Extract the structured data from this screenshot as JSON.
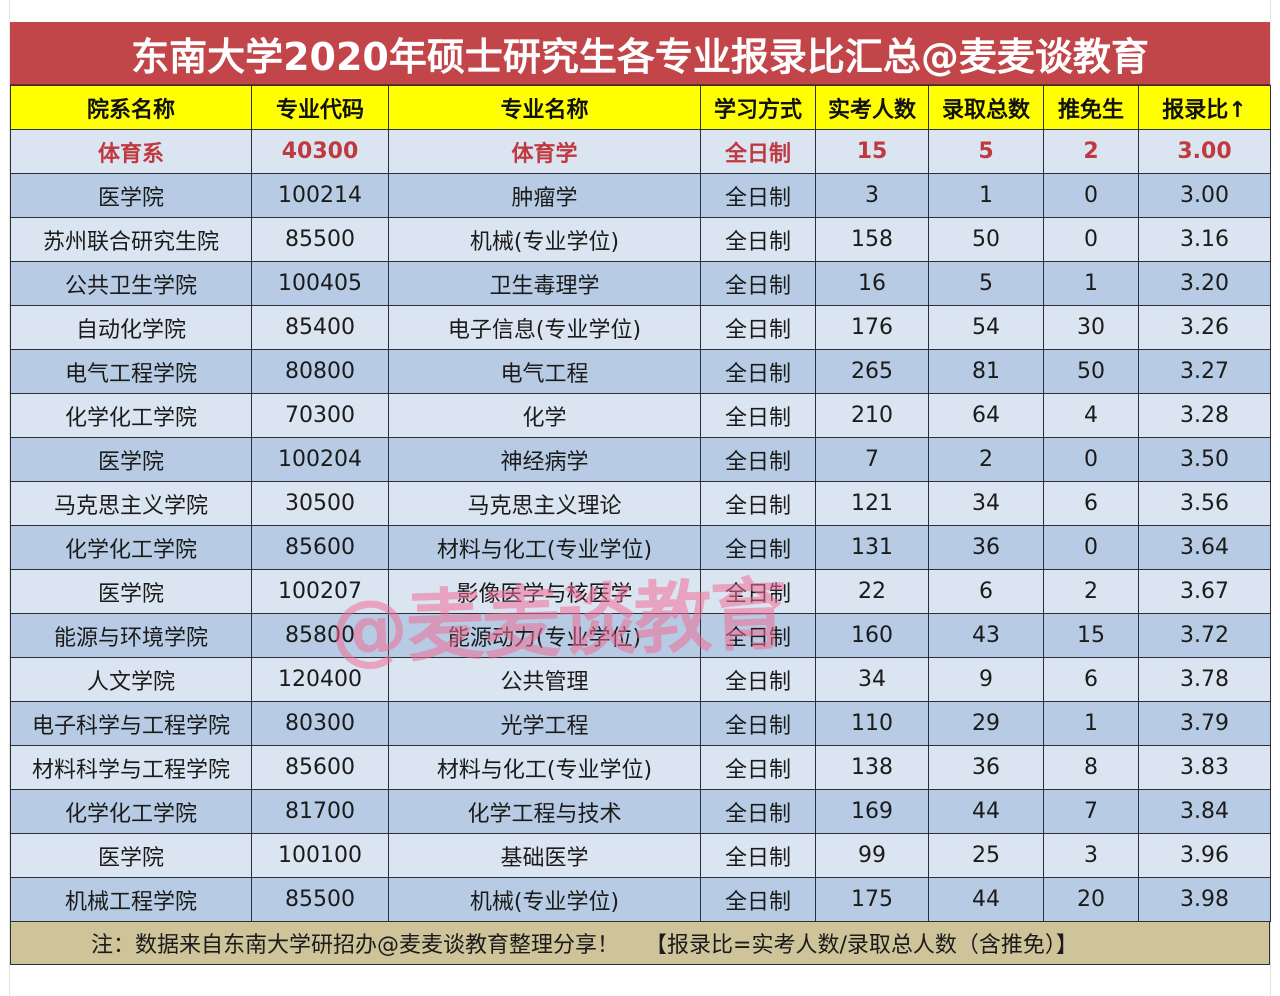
{
  "title": "东南大学2020年硕士研究生各专业报录比汇总@麦麦谈教育",
  "columns": [
    "院系名称",
    "专业代码",
    "专业名称",
    "学习方式",
    "实考人数",
    "录取总数",
    "推免生",
    "报录比↑"
  ],
  "rows": [
    [
      "体育系",
      "40300",
      "体育学",
      "全日制",
      "15",
      "5",
      "2",
      "3.00"
    ],
    [
      "医学院",
      "100214",
      "肿瘤学",
      "全日制",
      "3",
      "1",
      "0",
      "3.00"
    ],
    [
      "苏州联合研究生院",
      "85500",
      "机械(专业学位)",
      "全日制",
      "158",
      "50",
      "0",
      "3.16"
    ],
    [
      "公共卫生学院",
      "100405",
      "卫生毒理学",
      "全日制",
      "16",
      "5",
      "1",
      "3.20"
    ],
    [
      "自动化学院",
      "85400",
      "电子信息(专业学位)",
      "全日制",
      "176",
      "54",
      "30",
      "3.26"
    ],
    [
      "电气工程学院",
      "80800",
      "电气工程",
      "全日制",
      "265",
      "81",
      "50",
      "3.27"
    ],
    [
      "化学化工学院",
      "70300",
      "化学",
      "全日制",
      "210",
      "64",
      "4",
      "3.28"
    ],
    [
      "医学院",
      "100204",
      "神经病学",
      "全日制",
      "7",
      "2",
      "0",
      "3.50"
    ],
    [
      "马克思主义学院",
      "30500",
      "马克思主义理论",
      "全日制",
      "121",
      "34",
      "6",
      "3.56"
    ],
    [
      "化学化工学院",
      "85600",
      "材料与化工(专业学位)",
      "全日制",
      "131",
      "36",
      "0",
      "3.64"
    ],
    [
      "医学院",
      "100207",
      "影像医学与核医学",
      "全日制",
      "22",
      "6",
      "2",
      "3.67"
    ],
    [
      "能源与环境学院",
      "85800",
      "能源动力(专业学位)",
      "全日制",
      "160",
      "43",
      "15",
      "3.72"
    ],
    [
      "人文学院",
      "120400",
      "公共管理",
      "全日制",
      "34",
      "9",
      "6",
      "3.78"
    ],
    [
      "电子科学与工程学院",
      "80300",
      "光学工程",
      "全日制",
      "110",
      "29",
      "1",
      "3.79"
    ],
    [
      "材料科学与工程学院",
      "85600",
      "材料与化工(专业学位)",
      "全日制",
      "138",
      "36",
      "8",
      "3.83"
    ],
    [
      "化学化工学院",
      "81700",
      "化学工程与技术",
      "全日制",
      "169",
      "44",
      "7",
      "3.84"
    ],
    [
      "医学院",
      "100100",
      "基础医学",
      "全日制",
      "99",
      "25",
      "3",
      "3.96"
    ],
    [
      "机械工程学院",
      "85500",
      "机械(专业学位)",
      "全日制",
      "175",
      "44",
      "20",
      "3.98"
    ]
  ],
  "footer": {
    "note": "注：数据来自东南大学研招办@麦麦谈教育整理分享！",
    "formula": "【报录比=实考人数/录取总人数（含推免）】"
  },
  "watermark": "@麦麦谈教育",
  "colors": {
    "title_bg": "#c2454a",
    "header_bg": "#ffff00",
    "row_dark": "#b7cce4",
    "row_light": "#dbe5f1",
    "highlight_text": "#c0393f",
    "footer_bg": "#cfc39a"
  }
}
